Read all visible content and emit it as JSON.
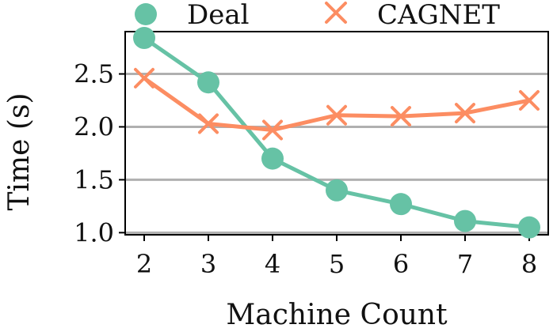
{
  "chart_data": {
    "type": "line",
    "title": "",
    "xlabel": "Machine Count",
    "ylabel": "Time (s)",
    "x": [
      2,
      3,
      4,
      5,
      6,
      7,
      8
    ],
    "xticks": [
      "2",
      "3",
      "4",
      "5",
      "6",
      "7",
      "8"
    ],
    "yticks": [
      "1.0",
      "1.5",
      "2.0",
      "2.5"
    ],
    "ylim": [
      0.98,
      2.9
    ],
    "xlim": [
      2,
      8
    ],
    "grid": "horizontal",
    "legend_position": "top",
    "series": [
      {
        "name": "Deal",
        "marker": "circle",
        "color": "#66c2a5",
        "values": [
          2.84,
          2.42,
          1.7,
          1.4,
          1.27,
          1.11,
          1.05
        ]
      },
      {
        "name": "CAGNET",
        "marker": "x",
        "color": "#fc8d62",
        "values": [
          2.46,
          2.03,
          1.97,
          2.11,
          2.1,
          2.13,
          2.25
        ]
      }
    ]
  }
}
